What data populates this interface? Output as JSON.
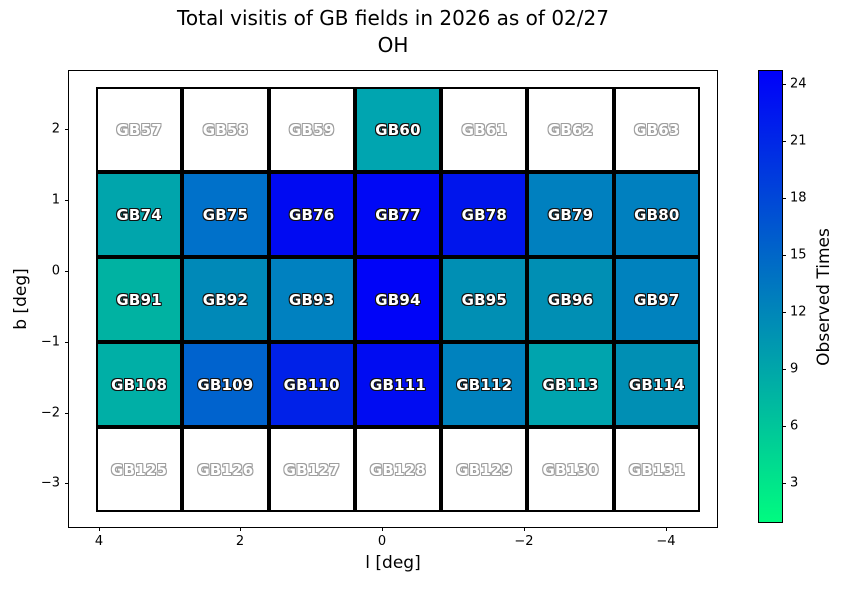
{
  "title": {
    "line1": "Total visitis of GB fields in 2026 as of 02/27",
    "line2": "OH"
  },
  "axes": {
    "xlabel": "l [deg]",
    "ylabel": "b [deg]",
    "x_ticks": [
      "4",
      "2",
      "0",
      "−2",
      "−4"
    ],
    "y_ticks": [
      "2",
      "1",
      "0",
      "−1",
      "−2",
      "−3"
    ]
  },
  "colorbar": {
    "label": "Observed Times",
    "ticks": [
      "24",
      "21",
      "18",
      "15",
      "12",
      "9",
      "6",
      "3"
    ],
    "gradient_top_color": "#0000fa",
    "gradient_bottom_color": "#00fb80"
  },
  "chart_data": {
    "type": "heatmap",
    "title": "Total visitis of GB fields in 2026 as of 02/27",
    "subtitle": "OH",
    "xlabel": "l [deg]",
    "ylabel": "b [deg]",
    "x_tick_values": [
      4,
      2,
      0,
      -2,
      -4
    ],
    "x_axis_reversed": true,
    "y_tick_values": [
      2,
      1,
      0,
      -1,
      -2,
      -3
    ],
    "colorbar_label": "Observed Times",
    "colorbar_tick_values": [
      3,
      6,
      9,
      12,
      15,
      18,
      21,
      24
    ],
    "colormap": "winter_r (green #00fb80 = low, blue #0000fa = high, white = 0)",
    "values_estimated_from_color": true,
    "rows": [
      [
        {
          "label": "GB57",
          "color": "#ffffff",
          "value_est": 0
        },
        {
          "label": "GB58",
          "color": "#ffffff",
          "value_est": 0
        },
        {
          "label": "GB59",
          "color": "#ffffff",
          "value_est": 0
        },
        {
          "label": "GB60",
          "color": "#00a5b0",
          "value_est": 9
        },
        {
          "label": "GB61",
          "color": "#ffffff",
          "value_est": 0
        },
        {
          "label": "GB62",
          "color": "#ffffff",
          "value_est": 0
        },
        {
          "label": "GB63",
          "color": "#ffffff",
          "value_est": 0
        }
      ],
      [
        {
          "label": "GB74",
          "color": "#00a5ac",
          "value_est": 9
        },
        {
          "label": "GB75",
          "color": "#0071ca",
          "value_est": 14
        },
        {
          "label": "GB76",
          "color": "#000af2",
          "value_est": 24
        },
        {
          "label": "GB77",
          "color": "#0008f5",
          "value_est": 24
        },
        {
          "label": "GB78",
          "color": "#0015ec",
          "value_est": 23
        },
        {
          "label": "GB79",
          "color": "#0080bf",
          "value_est": 13
        },
        {
          "label": "GB80",
          "color": "#0080bf",
          "value_est": 13
        }
      ],
      [
        {
          "label": "GB91",
          "color": "#00b2a2",
          "value_est": 8
        },
        {
          "label": "GB92",
          "color": "#0089b8",
          "value_est": 12
        },
        {
          "label": "GB93",
          "color": "#0081c0",
          "value_est": 13
        },
        {
          "label": "GB94",
          "color": "#0004f8",
          "value_est": 24
        },
        {
          "label": "GB95",
          "color": "#008fb4",
          "value_est": 11
        },
        {
          "label": "GB96",
          "color": "#008fb4",
          "value_est": 11
        },
        {
          "label": "GB97",
          "color": "#0082be",
          "value_est": 13
        }
      ],
      [
        {
          "label": "GB108",
          "color": "#00afa6",
          "value_est": 8
        },
        {
          "label": "GB109",
          "color": "#0063ce",
          "value_est": 15
        },
        {
          "label": "GB110",
          "color": "#0021e8",
          "value_est": 22
        },
        {
          "label": "GB111",
          "color": "#000cf2",
          "value_est": 24
        },
        {
          "label": "GB112",
          "color": "#0082be",
          "value_est": 13
        },
        {
          "label": "GB113",
          "color": "#00a4ae",
          "value_est": 9
        },
        {
          "label": "GB114",
          "color": "#008fb4",
          "value_est": 11
        }
      ],
      [
        {
          "label": "GB125",
          "color": "#ffffff",
          "value_est": 0
        },
        {
          "label": "GB126",
          "color": "#ffffff",
          "value_est": 0
        },
        {
          "label": "GB127",
          "color": "#ffffff",
          "value_est": 0
        },
        {
          "label": "GB128",
          "color": "#ffffff",
          "value_est": 0
        },
        {
          "label": "GB129",
          "color": "#ffffff",
          "value_est": 0
        },
        {
          "label": "GB130",
          "color": "#ffffff",
          "value_est": 0
        },
        {
          "label": "GB131",
          "color": "#ffffff",
          "value_est": 0
        }
      ]
    ]
  }
}
